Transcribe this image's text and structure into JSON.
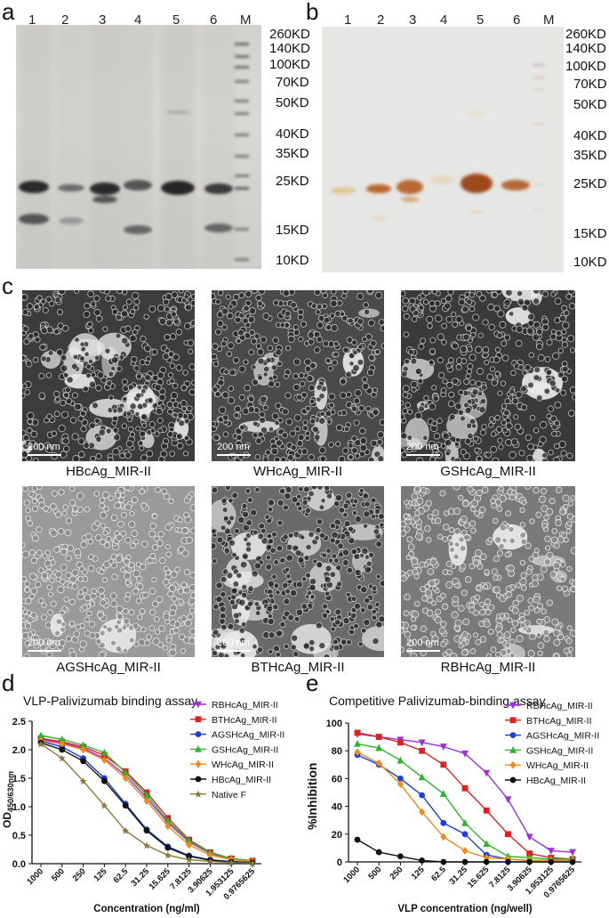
{
  "panels": {
    "a": {
      "letter": "a",
      "lanes": [
        "1",
        "2",
        "3",
        "4",
        "5",
        "6",
        "M"
      ],
      "markers": [
        "260KD",
        "140KD",
        "100KD",
        "70KD",
        "50KD",
        "40KD",
        "35KD",
        "25KD",
        "15KD",
        "10KD"
      ]
    },
    "b": {
      "letter": "b",
      "lanes": [
        "1",
        "2",
        "3",
        "4",
        "5",
        "6",
        "M"
      ],
      "markers": [
        "260KD",
        "140KD",
        "100KD",
        "70KD",
        "50KD",
        "40KD",
        "35KD",
        "25KD",
        "15KD",
        "10KD"
      ]
    },
    "c": {
      "letter": "c",
      "scale_label": "200 nm",
      "images": [
        {
          "caption": "HBcAg_MIR-II"
        },
        {
          "caption": "WHcAg_MIR-II"
        },
        {
          "caption": "GSHcAg_MIR-II"
        },
        {
          "caption": "AGSHcAg_MIR-II"
        },
        {
          "caption": "BTHcAg_MIR-II"
        },
        {
          "caption": "RBHcAg_MIR-II"
        }
      ]
    },
    "d": {
      "letter": "d"
    },
    "e": {
      "letter": "e"
    }
  },
  "chart_data": [
    {
      "type": "line",
      "title": "VLP-Palivizumab  binding assay",
      "xlabel": "Concentration (ng/ml)",
      "ylabel": "OD450/630nm",
      "ylabel_main": "OD",
      "ylabel_sub": "450/630nm",
      "categories": [
        "1000",
        "500",
        "250",
        "125",
        "62.5",
        "31.25",
        "15.625",
        "7.8125",
        "3.90625",
        "1.953125",
        "0.9765625"
      ],
      "ylim": [
        0,
        2.5
      ],
      "yticks": [
        "0.0",
        "0.5",
        "1.0",
        "1.5",
        "2.0",
        "2.5"
      ],
      "legend_position": "top-right",
      "series": [
        {
          "name": "RBHcAg_MIR-II",
          "color": "#9b30e0",
          "marker": "triangle-down",
          "values": [
            2.18,
            2.12,
            2.02,
            1.85,
            1.55,
            1.15,
            0.72,
            0.38,
            0.18,
            0.08,
            0.04
          ]
        },
        {
          "name": "BTHcAg_MIR-II",
          "color": "#e02020",
          "marker": "square",
          "values": [
            2.2,
            2.14,
            2.05,
            1.9,
            1.62,
            1.25,
            0.8,
            0.42,
            0.2,
            0.09,
            0.05
          ]
        },
        {
          "name": "AGSHcAg_MIR-II",
          "color": "#1a3ee0",
          "marker": "circle",
          "values": [
            2.15,
            2.05,
            1.85,
            1.5,
            1.05,
            0.6,
            0.3,
            0.14,
            0.07,
            0.04,
            0.02
          ]
        },
        {
          "name": "GSHcAg_MIR-II",
          "color": "#2db52d",
          "marker": "triangle-up",
          "values": [
            2.25,
            2.18,
            2.08,
            1.95,
            1.6,
            1.2,
            0.75,
            0.4,
            0.19,
            0.09,
            0.05
          ]
        },
        {
          "name": "WHcAg_MIR-II",
          "color": "#f08a1c",
          "marker": "diamond",
          "values": [
            2.16,
            2.1,
            2.0,
            1.82,
            1.5,
            1.1,
            0.66,
            0.33,
            0.15,
            0.07,
            0.04
          ]
        },
        {
          "name": "HBcAg_MIR-II",
          "color": "#111111",
          "marker": "circle",
          "values": [
            2.12,
            2.0,
            1.8,
            1.45,
            1.02,
            0.58,
            0.28,
            0.13,
            0.06,
            0.03,
            0.02
          ]
        },
        {
          "name": "Native F",
          "color": "#8b7a3a",
          "marker": "star",
          "values": [
            2.1,
            1.85,
            1.45,
            1.02,
            0.58,
            0.32,
            0.15,
            0.07,
            0.04,
            0.02,
            0.01
          ]
        }
      ]
    },
    {
      "type": "line",
      "title": "Competitive Palivizumab-binding assay",
      "xlabel": "VLP concentration (ng/well)",
      "ylabel": "%Inhibition",
      "categories": [
        "1000",
        "500",
        "250",
        "125",
        "62.5",
        "31.25",
        "15.625",
        "7.8125",
        "3.90625",
        "1.953125",
        "0.9765625"
      ],
      "ylim": [
        0,
        100
      ],
      "yticks": [
        "0",
        "20",
        "40",
        "60",
        "80",
        "100"
      ],
      "legend_position": "top-right",
      "series": [
        {
          "name": "RBHcAg_MIR-II",
          "color": "#9b30e0",
          "marker": "triangle-down",
          "values": [
            92,
            90,
            88,
            86,
            83,
            78,
            64,
            45,
            18,
            8,
            7
          ]
        },
        {
          "name": "BTHcAg_MIR-II",
          "color": "#e02020",
          "marker": "square",
          "values": [
            93,
            90,
            86,
            80,
            70,
            53,
            37,
            20,
            6,
            3,
            2
          ]
        },
        {
          "name": "AGSHcAg_MIR-II",
          "color": "#1a3ee0",
          "marker": "circle",
          "values": [
            77,
            70,
            60,
            48,
            28,
            20,
            5,
            2,
            1,
            1,
            1
          ]
        },
        {
          "name": "GSHcAg_MIR-II",
          "color": "#2db52d",
          "marker": "triangle-up",
          "values": [
            85,
            82,
            73,
            61,
            49,
            28,
            13,
            4,
            3,
            2,
            2
          ]
        },
        {
          "name": "WHcAg_MIR-II",
          "color": "#f08a1c",
          "marker": "diamond",
          "values": [
            79,
            71,
            56,
            36,
            18,
            8,
            3,
            2,
            1,
            1,
            1
          ]
        },
        {
          "name": "HBcAg_MIR-II",
          "color": "#111111",
          "marker": "circle",
          "values": [
            16,
            7,
            4,
            1,
            0,
            0,
            0,
            0,
            0,
            0,
            0
          ]
        }
      ]
    }
  ]
}
